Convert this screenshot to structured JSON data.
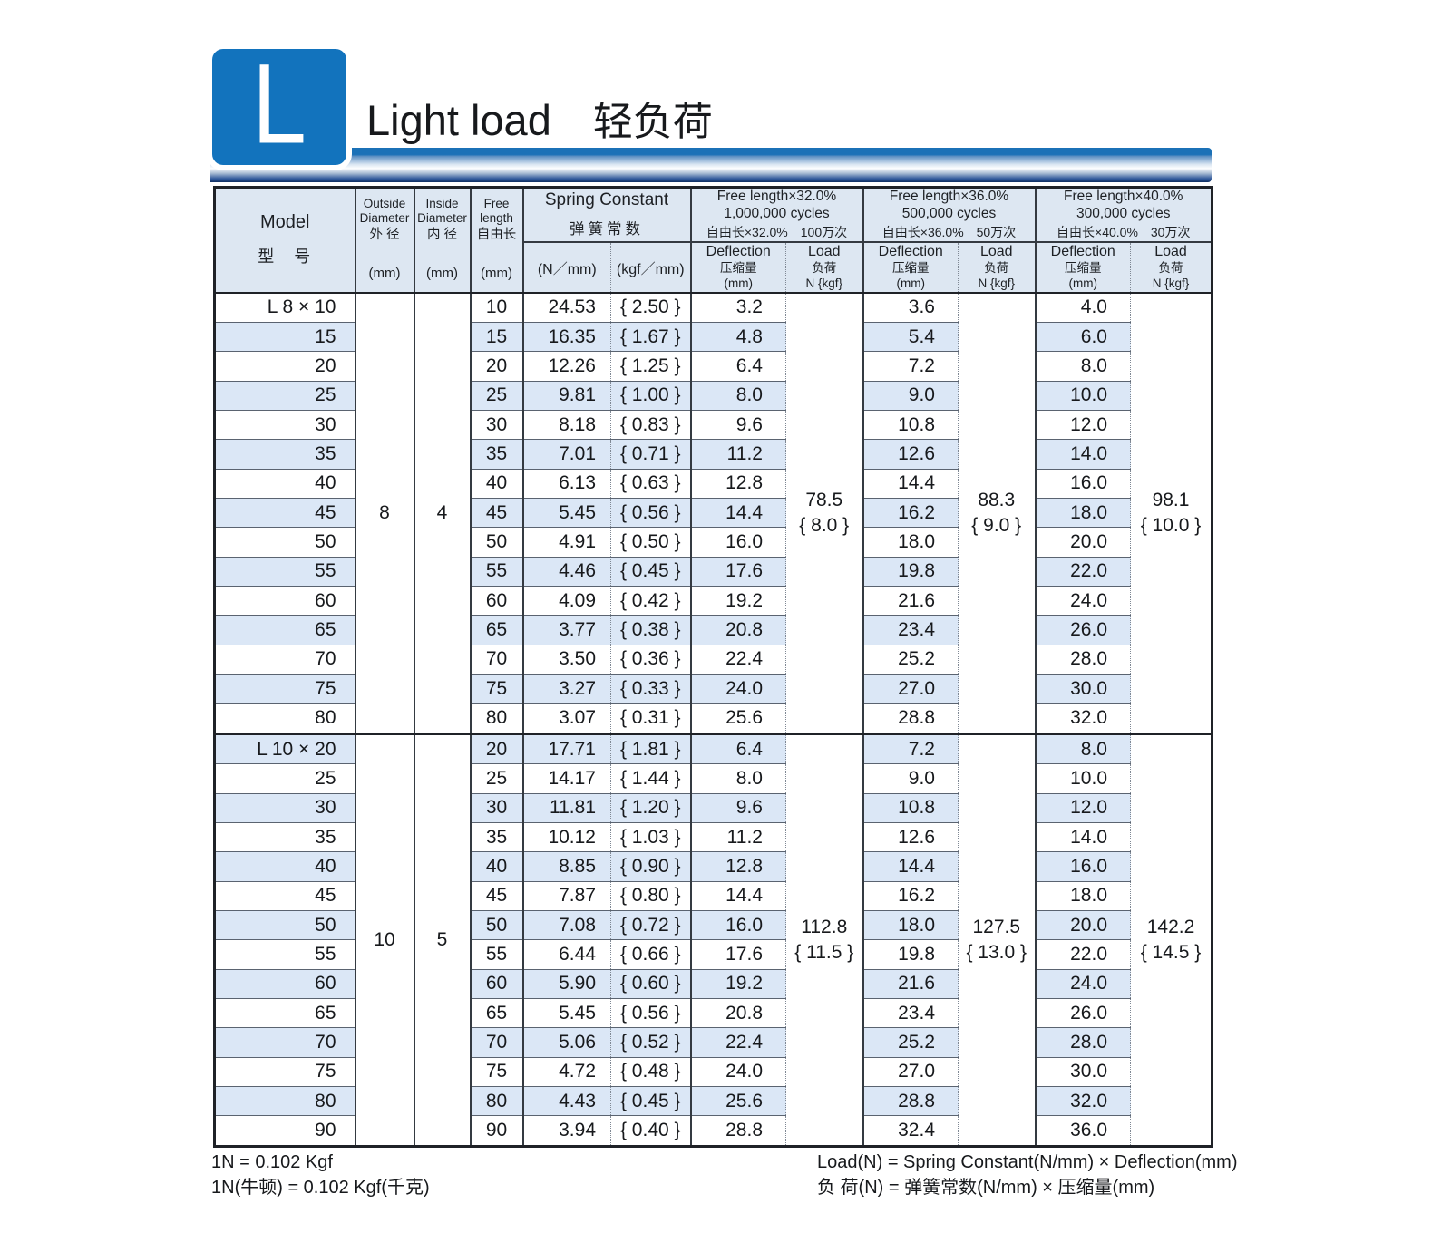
{
  "page": {
    "badge_letter": "L",
    "title_en": "Light load",
    "title_zh": "轻负荷",
    "accent_color": "#1273bd"
  },
  "table": {
    "header": {
      "model_en": "Model",
      "model_zh": "型　号",
      "od": {
        "l1": "Outside",
        "l2": "Diameter",
        "zh": "外 径",
        "unit": "(mm)"
      },
      "id": {
        "l1": "Inside",
        "l2": "Diameter",
        "zh": "内 径",
        "unit": "(mm)"
      },
      "fl": {
        "l1": "Free",
        "l2": "length",
        "zh": "自由长",
        "unit": "(mm)"
      },
      "sc": {
        "en": "Spring Constant",
        "zh": "弹簧常数",
        "unit_n": "(N／mm)",
        "unit_kgf": "(kgf／mm)"
      },
      "groups": [
        {
          "en1": "Free length×32.0%",
          "en2": "1,000,000 cycles",
          "zh": "自由长×32.0%　100万次"
        },
        {
          "en1": "Free length×36.0%",
          "en2": "500,000 cycles",
          "zh": "自由长×36.0%　50万次"
        },
        {
          "en1": "Free length×40.0%",
          "en2": "300,000 cycles",
          "zh": "自由长×40.0%　30万次"
        }
      ],
      "deflection": {
        "en": "Deflection",
        "zh": "压缩量",
        "unit": "(mm)"
      },
      "load": {
        "en": "Load",
        "zh": "负荷",
        "unit": "N {kgf}"
      }
    },
    "groups": [
      {
        "model": "L  8 × 10",
        "outside_diameter": "8",
        "inside_diameter": "4",
        "loads": [
          {
            "n": "78.5",
            "kgf": "{ 8.0 }"
          },
          {
            "n": "88.3",
            "kgf": "{ 9.0 }"
          },
          {
            "n": "98.1",
            "kgf": "{ 10.0 }"
          }
        ],
        "rows": [
          {
            "label": "L  8 × 10",
            "free_length": "10",
            "k_n": "24.53",
            "k_kgf": "{ 2.50 }",
            "d32": "3.2",
            "d36": "3.6",
            "d40": "4.0"
          },
          {
            "label": "15",
            "free_length": "15",
            "k_n": "16.35",
            "k_kgf": "{ 1.67 }",
            "d32": "4.8",
            "d36": "5.4",
            "d40": "6.0"
          },
          {
            "label": "20",
            "free_length": "20",
            "k_n": "12.26",
            "k_kgf": "{ 1.25 }",
            "d32": "6.4",
            "d36": "7.2",
            "d40": "8.0"
          },
          {
            "label": "25",
            "free_length": "25",
            "k_n": "9.81",
            "k_kgf": "{ 1.00 }",
            "d32": "8.0",
            "d36": "9.0",
            "d40": "10.0"
          },
          {
            "label": "30",
            "free_length": "30",
            "k_n": "8.18",
            "k_kgf": "{ 0.83 }",
            "d32": "9.6",
            "d36": "10.8",
            "d40": "12.0"
          },
          {
            "label": "35",
            "free_length": "35",
            "k_n": "7.01",
            "k_kgf": "{ 0.71 }",
            "d32": "11.2",
            "d36": "12.6",
            "d40": "14.0"
          },
          {
            "label": "40",
            "free_length": "40",
            "k_n": "6.13",
            "k_kgf": "{ 0.63 }",
            "d32": "12.8",
            "d36": "14.4",
            "d40": "16.0"
          },
          {
            "label": "45",
            "free_length": "45",
            "k_n": "5.45",
            "k_kgf": "{ 0.56 }",
            "d32": "14.4",
            "d36": "16.2",
            "d40": "18.0"
          },
          {
            "label": "50",
            "free_length": "50",
            "k_n": "4.91",
            "k_kgf": "{ 0.50 }",
            "d32": "16.0",
            "d36": "18.0",
            "d40": "20.0"
          },
          {
            "label": "55",
            "free_length": "55",
            "k_n": "4.46",
            "k_kgf": "{ 0.45 }",
            "d32": "17.6",
            "d36": "19.8",
            "d40": "22.0"
          },
          {
            "label": "60",
            "free_length": "60",
            "k_n": "4.09",
            "k_kgf": "{ 0.42 }",
            "d32": "19.2",
            "d36": "21.6",
            "d40": "24.0"
          },
          {
            "label": "65",
            "free_length": "65",
            "k_n": "3.77",
            "k_kgf": "{ 0.38 }",
            "d32": "20.8",
            "d36": "23.4",
            "d40": "26.0"
          },
          {
            "label": "70",
            "free_length": "70",
            "k_n": "3.50",
            "k_kgf": "{ 0.36 }",
            "d32": "22.4",
            "d36": "25.2",
            "d40": "28.0"
          },
          {
            "label": "75",
            "free_length": "75",
            "k_n": "3.27",
            "k_kgf": "{ 0.33 }",
            "d32": "24.0",
            "d36": "27.0",
            "d40": "30.0"
          },
          {
            "label": "80",
            "free_length": "80",
            "k_n": "3.07",
            "k_kgf": "{ 0.31 }",
            "d32": "25.6",
            "d36": "28.8",
            "d40": "32.0"
          }
        ]
      },
      {
        "model": "L  10 × 20",
        "outside_diameter": "10",
        "inside_diameter": "5",
        "loads": [
          {
            "n": "112.8",
            "kgf": "{ 11.5 }"
          },
          {
            "n": "127.5",
            "kgf": "{ 13.0 }"
          },
          {
            "n": "142.2",
            "kgf": "{ 14.5 }"
          }
        ],
        "rows": [
          {
            "label": "L  10 × 20",
            "free_length": "20",
            "k_n": "17.71",
            "k_kgf": "{ 1.81 }",
            "d32": "6.4",
            "d36": "7.2",
            "d40": "8.0"
          },
          {
            "label": "25",
            "free_length": "25",
            "k_n": "14.17",
            "k_kgf": "{ 1.44 }",
            "d32": "8.0",
            "d36": "9.0",
            "d40": "10.0"
          },
          {
            "label": "30",
            "free_length": "30",
            "k_n": "11.81",
            "k_kgf": "{ 1.20 }",
            "d32": "9.6",
            "d36": "10.8",
            "d40": "12.0"
          },
          {
            "label": "35",
            "free_length": "35",
            "k_n": "10.12",
            "k_kgf": "{ 1.03 }",
            "d32": "11.2",
            "d36": "12.6",
            "d40": "14.0"
          },
          {
            "label": "40",
            "free_length": "40",
            "k_n": "8.85",
            "k_kgf": "{ 0.90 }",
            "d32": "12.8",
            "d36": "14.4",
            "d40": "16.0"
          },
          {
            "label": "45",
            "free_length": "45",
            "k_n": "7.87",
            "k_kgf": "{ 0.80 }",
            "d32": "14.4",
            "d36": "16.2",
            "d40": "18.0"
          },
          {
            "label": "50",
            "free_length": "50",
            "k_n": "7.08",
            "k_kgf": "{ 0.72 }",
            "d32": "16.0",
            "d36": "18.0",
            "d40": "20.0"
          },
          {
            "label": "55",
            "free_length": "55",
            "k_n": "6.44",
            "k_kgf": "{ 0.66 }",
            "d32": "17.6",
            "d36": "19.8",
            "d40": "22.0"
          },
          {
            "label": "60",
            "free_length": "60",
            "k_n": "5.90",
            "k_kgf": "{ 0.60 }",
            "d32": "19.2",
            "d36": "21.6",
            "d40": "24.0"
          },
          {
            "label": "65",
            "free_length": "65",
            "k_n": "5.45",
            "k_kgf": "{ 0.56 }",
            "d32": "20.8",
            "d36": "23.4",
            "d40": "26.0"
          },
          {
            "label": "70",
            "free_length": "70",
            "k_n": "5.06",
            "k_kgf": "{ 0.52 }",
            "d32": "22.4",
            "d36": "25.2",
            "d40": "28.0"
          },
          {
            "label": "75",
            "free_length": "75",
            "k_n": "4.72",
            "k_kgf": "{ 0.48 }",
            "d32": "24.0",
            "d36": "27.0",
            "d40": "30.0"
          },
          {
            "label": "80",
            "free_length": "80",
            "k_n": "4.43",
            "k_kgf": "{ 0.45 }",
            "d32": "25.6",
            "d36": "28.8",
            "d40": "32.0"
          },
          {
            "label": "90",
            "free_length": "90",
            "k_n": "3.94",
            "k_kgf": "{ 0.40 }",
            "d32": "28.8",
            "d36": "32.4",
            "d40": "36.0"
          }
        ]
      }
    ]
  },
  "footnotes": {
    "left1": "1N = 0.102 Kgf",
    "left2": "1N(牛顿) = 0.102 Kgf(千克)",
    "right1": "Load(N) = Spring Constant(N/mm) × Deflection(mm)",
    "right2": "负 荷(N) = 弹簧常数(N/mm) × 压缩量(mm)"
  }
}
